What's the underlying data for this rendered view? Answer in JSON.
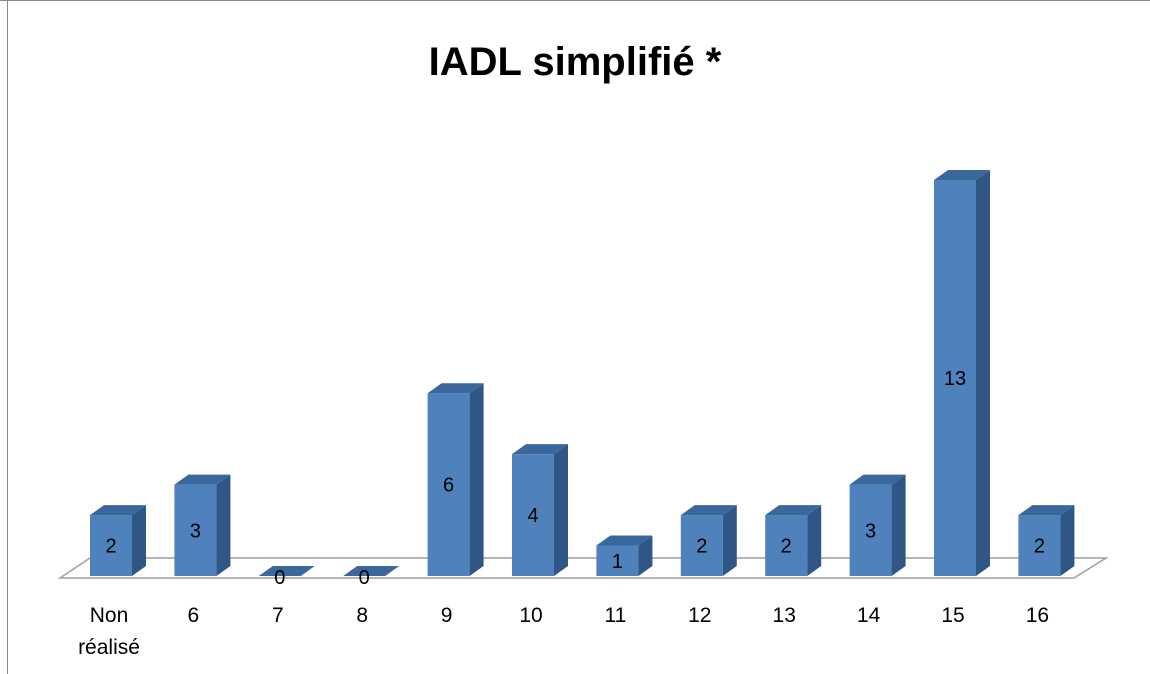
{
  "chart_data": {
    "type": "bar",
    "title": "IADL simplifié *",
    "categories": [
      "Non réalisé",
      "6",
      "7",
      "8",
      "9",
      "10",
      "11",
      "12",
      "13",
      "14",
      "15",
      "16"
    ],
    "values": [
      2,
      3,
      0,
      0,
      6,
      4,
      1,
      2,
      2,
      3,
      13,
      2
    ],
    "ylim": [
      0,
      13
    ],
    "grid": false,
    "legend": "none",
    "style": "3d-column",
    "colors": {
      "front": "#4f81bd",
      "side": "#2f5684",
      "top": "#3a679c",
      "floor": "#ffffff",
      "floor_edge": "#9e9e9e"
    }
  }
}
